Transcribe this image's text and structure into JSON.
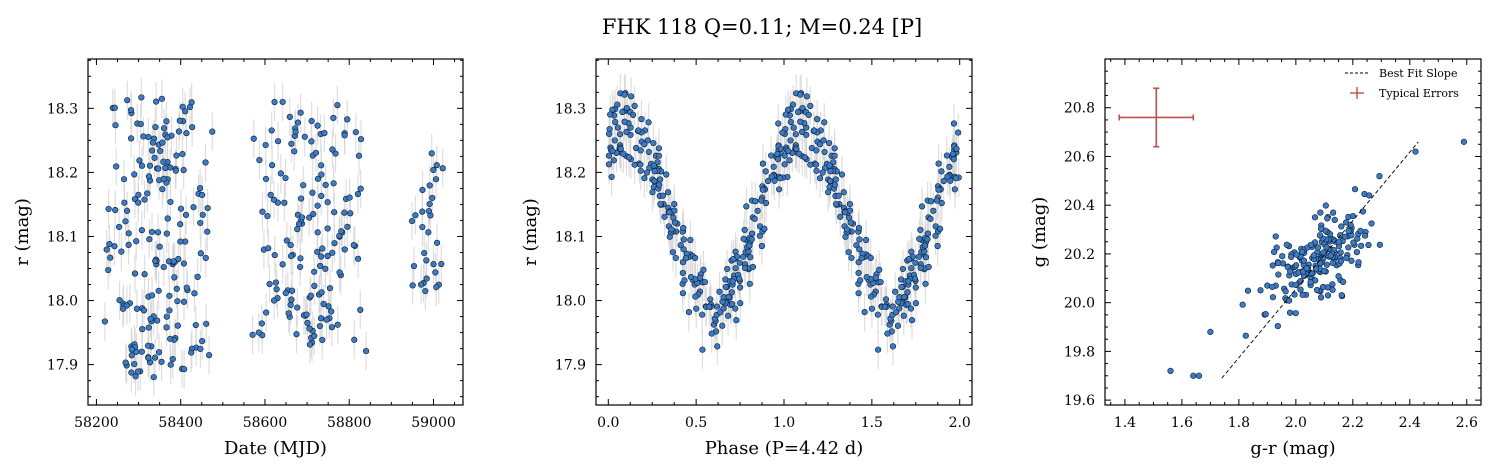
{
  "figure": {
    "title": "FHK 118  Q=0.11; M=0.24 [P]"
  },
  "colors": {
    "point_fill": "#3a7bc8",
    "point_edge": "#0d1b2a",
    "errorbar": "#d3d3d3",
    "typical_error": "#c0504d",
    "fit_line": "#000000"
  },
  "chart_data": [
    {
      "type": "scatter",
      "id": "lightcurve",
      "xlabel": "Date (MJD)",
      "ylabel": "r (mag)",
      "xlim": [
        58180,
        59070
      ],
      "ylim": [
        18.377,
        17.837
      ],
      "y_inverted": true,
      "xticks": [
        58200,
        58400,
        58600,
        58800,
        59000
      ],
      "xtick_labels": [
        "58200",
        "58400",
        "58600",
        "58800",
        "59000"
      ],
      "yticks": [
        17.9,
        18.0,
        18.1,
        18.2,
        18.3
      ],
      "ytick_labels": [
        "17.9",
        "18.0",
        "18.1",
        "18.2",
        "18.3"
      ],
      "yerr": 0.03,
      "seasons": [
        {
          "x_range": [
            58215,
            58480
          ],
          "ymin": 17.88,
          "ymax": 18.32,
          "n": 190
        },
        {
          "x_range": [
            58560,
            58840
          ],
          "ymin": 17.92,
          "ymax": 18.31,
          "n": 150
        },
        {
          "x_range": [
            58940,
            59030
          ],
          "ymin": 18.01,
          "ymax": 18.23,
          "n": 30
        }
      ]
    },
    {
      "type": "scatter",
      "id": "phased",
      "xlabel": "Phase (P=4.42 d)",
      "ylabel": "r (mag)",
      "period_days": 4.42,
      "xlim": [
        -0.07,
        2.07
      ],
      "ylim": [
        18.377,
        17.837
      ],
      "y_inverted": true,
      "xticks": [
        0.0,
        0.5,
        1.0,
        1.5,
        2.0
      ],
      "xtick_labels": [
        "0.0",
        "0.5",
        "1.0",
        "1.5",
        "2.0"
      ],
      "yticks": [
        17.9,
        18.0,
        18.1,
        18.2,
        18.3
      ],
      "ytick_labels": [
        "17.9",
        "18.0",
        "18.1",
        "18.2",
        "18.3"
      ],
      "yerr": 0.03,
      "model": {
        "mean_mag": 18.13,
        "amplitude": 0.14,
        "phase_of_max_brightness": 0.6,
        "scatter": 0.03,
        "n_per_cycle": 260
      }
    },
    {
      "type": "scatter",
      "id": "color_magnitude",
      "xlabel": "g-r (mag)",
      "ylabel": "g (mag)",
      "xlim": [
        1.33,
        2.65
      ],
      "ylim": [
        21.0,
        19.58
      ],
      "y_inverted": true,
      "xticks": [
        1.4,
        1.6,
        1.8,
        2.0,
        2.2,
        2.4,
        2.6
      ],
      "xtick_labels": [
        "1.4",
        "1.6",
        "1.8",
        "2.0",
        "2.2",
        "2.4",
        "2.6"
      ],
      "yticks": [
        19.6,
        19.8,
        20.0,
        20.2,
        20.4,
        20.6,
        20.8
      ],
      "ytick_labels": [
        "19.6",
        "19.8",
        "20.0",
        "20.2",
        "20.4",
        "20.6",
        "20.8"
      ],
      "cluster": {
        "center_x": 2.08,
        "center_y": 20.18,
        "spread_x": 0.16,
        "slope": 1.2,
        "scatter_y": 0.09,
        "n": 200
      },
      "outliers": [
        {
          "x": 1.56,
          "y": 19.72
        },
        {
          "x": 1.64,
          "y": 19.7
        },
        {
          "x": 1.66,
          "y": 19.7
        },
        {
          "x": 1.7,
          "y": 19.88
        },
        {
          "x": 2.59,
          "y": 20.66
        },
        {
          "x": 2.42,
          "y": 20.62
        }
      ],
      "fit_line": {
        "x": [
          1.74,
          2.43
        ],
        "y": [
          19.69,
          20.66
        ]
      },
      "typical_error": {
        "x": 1.51,
        "y": 20.76,
        "xerr": 0.13,
        "yerr": 0.12
      },
      "legend": {
        "placement": "top-right",
        "entries": [
          "Best Fit Slope",
          "Typical Errors"
        ]
      }
    }
  ]
}
